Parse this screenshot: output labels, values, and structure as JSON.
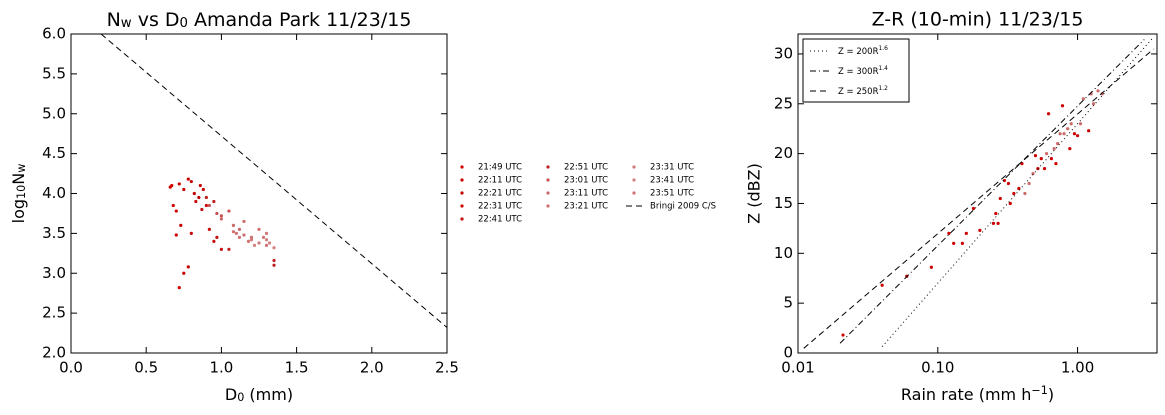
{
  "chart_data": [
    {
      "type": "scatter",
      "title": [
        "N",
        "w",
        " vs D",
        "0",
        " Amanda Park 11/23/15"
      ],
      "title_script": "sub",
      "xlabel": [
        "D",
        "0",
        " (mm)"
      ],
      "xlabel_script": "sub",
      "ylabel": [
        "log",
        "10",
        "N",
        "w"
      ],
      "ylabel_script": "sub",
      "xlim": [
        0,
        2.5
      ],
      "ylim": [
        2,
        6
      ],
      "xticks": [
        {
          "value": 0,
          "label": "0.0"
        },
        {
          "value": 0.5,
          "label": "0.5"
        },
        {
          "value": 1,
          "label": "1.0"
        },
        {
          "value": 1.5,
          "label": "1.5"
        },
        {
          "value": 2,
          "label": "2.0"
        },
        {
          "value": 2.5,
          "label": "2.5"
        }
      ],
      "yticks": [
        {
          "value": 2,
          "label": "2.0"
        },
        {
          "value": 2.5,
          "label": "2.5"
        },
        {
          "value": 3,
          "label": "3.0"
        },
        {
          "value": 3.5,
          "label": "3.5"
        },
        {
          "value": 4,
          "label": "4.0"
        },
        {
          "value": 4.5,
          "label": "4.5"
        },
        {
          "value": 5,
          "label": "5.0"
        },
        {
          "value": 5.5,
          "label": "5.5"
        },
        {
          "value": 6,
          "label": "6.0"
        }
      ],
      "series": [
        {
          "name": "21:49 UTC",
          "color": "#d40000",
          "x": [
            0.66,
            0.67,
            0.7,
            0.72,
            0.68
          ],
          "values": [
            4.08,
            4.1,
            3.78,
            2.82,
            3.85
          ]
        },
        {
          "name": "22:11 UTC",
          "color": "#cc0000",
          "x": [
            0.72,
            0.75,
            0.78,
            0.75,
            0.7
          ],
          "values": [
            4.12,
            4.05,
            4.18,
            3.0,
            3.48
          ]
        },
        {
          "name": "22:21 UTC",
          "color": "#c40000",
          "x": [
            0.8,
            0.82,
            0.85,
            0.78,
            0.73
          ],
          "values": [
            4.15,
            4.0,
            3.95,
            3.08,
            3.6
          ]
        },
        {
          "name": "22:31 UTC",
          "color": "#c80808",
          "x": [
            0.86,
            0.88,
            0.9,
            0.92,
            0.8
          ],
          "values": [
            4.1,
            4.05,
            3.85,
            3.55,
            3.5
          ]
        },
        {
          "name": "22:41 UTC",
          "color": "#c41010",
          "x": [
            0.83,
            0.87,
            0.95,
            0.97,
            1.0
          ],
          "values": [
            3.9,
            3.8,
            3.4,
            3.45,
            3.3
          ]
        },
        {
          "name": "22:51 UTC",
          "color": "#c02020",
          "x": [
            0.9,
            0.95,
            1.05,
            1.35,
            1.35
          ],
          "values": [
            3.95,
            3.9,
            3.3,
            3.1,
            3.16
          ]
        },
        {
          "name": "23:01 UTC",
          "color": "#c85050",
          "x": [
            0.92,
            0.97,
            1.0,
            1.05
          ],
          "values": [
            3.85,
            3.75,
            3.72,
            3.78
          ]
        },
        {
          "name": "23:11 UTC",
          "color": "#cc6a6a",
          "x": [
            1.0,
            1.08,
            1.12,
            1.15
          ],
          "values": [
            3.68,
            3.6,
            3.55,
            3.65
          ]
        },
        {
          "name": "23:21 UTC",
          "color": "#cf7070",
          "x": [
            1.1,
            1.15,
            1.2,
            1.25
          ],
          "values": [
            3.5,
            3.48,
            3.45,
            3.55
          ]
        },
        {
          "name": "23:31 UTC",
          "color": "#d07878",
          "x": [
            1.2,
            1.25,
            1.3,
            1.28
          ],
          "values": [
            3.42,
            3.38,
            3.5,
            3.45
          ]
        },
        {
          "name": "23:41 UTC",
          "color": "#d48080",
          "x": [
            1.3,
            1.32,
            1.35,
            1.22
          ],
          "values": [
            3.42,
            3.38,
            3.32,
            3.35
          ]
        },
        {
          "name": "23:51 UTC",
          "color": "#d07070",
          "x": [
            1.08,
            1.12,
            1.18,
            1.3
          ],
          "values": [
            3.52,
            3.45,
            3.4,
            3.35
          ]
        },
        {
          "name": "Bringi 2009 C/S",
          "type": "line",
          "linestyle": "dashed",
          "color": "#000000",
          "x": [
            0.2,
            2.5
          ],
          "values": [
            6.0,
            2.32
          ]
        }
      ]
    },
    {
      "type": "scatter",
      "xscale": "log",
      "title": "Z-R (10-min) 11/23/15",
      "xlabel": [
        "Rain rate (mm h",
        "−1",
        ")"
      ],
      "xlabel_script": "sup",
      "ylabel": "Z (dBZ)",
      "xlim": [
        0.01,
        3.7
      ],
      "ylim": [
        0,
        32
      ],
      "xticks": [
        {
          "value": 0.01,
          "label": "0.01"
        },
        {
          "value": 0.1,
          "label": "0.10"
        },
        {
          "value": 1,
          "label": "1.00"
        }
      ],
      "yticks": [
        0,
        5,
        10,
        15,
        20,
        25,
        30
      ],
      "series": [
        {
          "color": "#cc0000",
          "x": [
            0.021,
            0.04,
            0.06,
            0.09,
            0.12,
            0.13,
            0.15,
            0.16,
            0.18,
            0.2,
            0.25,
            0.26,
            0.27,
            0.28,
            0.3,
            0.32,
            0.33,
            0.35,
            0.38,
            0.4,
            0.5,
            0.52,
            0.55,
            0.58,
            0.62,
            0.65,
            0.7,
            0.78,
            0.88,
            0.95,
            1.0,
            1.2
          ],
          "values": [
            1.8,
            6.8,
            7.7,
            8.6,
            12,
            11,
            11,
            12,
            14.5,
            12.3,
            13,
            14,
            13,
            15.5,
            17.3,
            17,
            15,
            16,
            16.5,
            19,
            19.8,
            18.5,
            19.5,
            18.5,
            24,
            19.5,
            19,
            24.8,
            20.5,
            22,
            21.8,
            22.3
          ]
        },
        {
          "color": "#cc6a6a",
          "x": [
            0.42,
            0.45,
            0.48,
            0.6,
            0.68,
            0.72,
            0.75,
            0.8,
            0.85,
            0.9,
            1.05,
            1.1,
            1.25,
            1.3,
            1.4,
            1.5
          ],
          "values": [
            16,
            17,
            18,
            20,
            20.5,
            21,
            22,
            22,
            22.5,
            23,
            23,
            25.5,
            26,
            25,
            26.3,
            26
          ]
        },
        {
          "name": [
            "Z = 200R",
            "1.6"
          ],
          "name_script": "sup",
          "type": "line",
          "linestyle": "dotted",
          "color": "#000000",
          "x": [
            0.04,
            3.5
          ],
          "values": [
            0.64,
            31.7
          ]
        },
        {
          "name": [
            "Z = 300R",
            "1.4"
          ],
          "name_script": "sup",
          "type": "line",
          "linestyle": "dashdot",
          "color": "#000000",
          "x": [
            0.02,
            3.0
          ],
          "values": [
            0.98,
            31.45
          ]
        },
        {
          "name": [
            "Z = 250R",
            "1.2"
          ],
          "name_script": "sup",
          "type": "line",
          "linestyle": "dashed",
          "color": "#000000",
          "x": [
            0.011,
            3.5
          ],
          "values": [
            0.47,
            30.5
          ]
        }
      ]
    }
  ]
}
